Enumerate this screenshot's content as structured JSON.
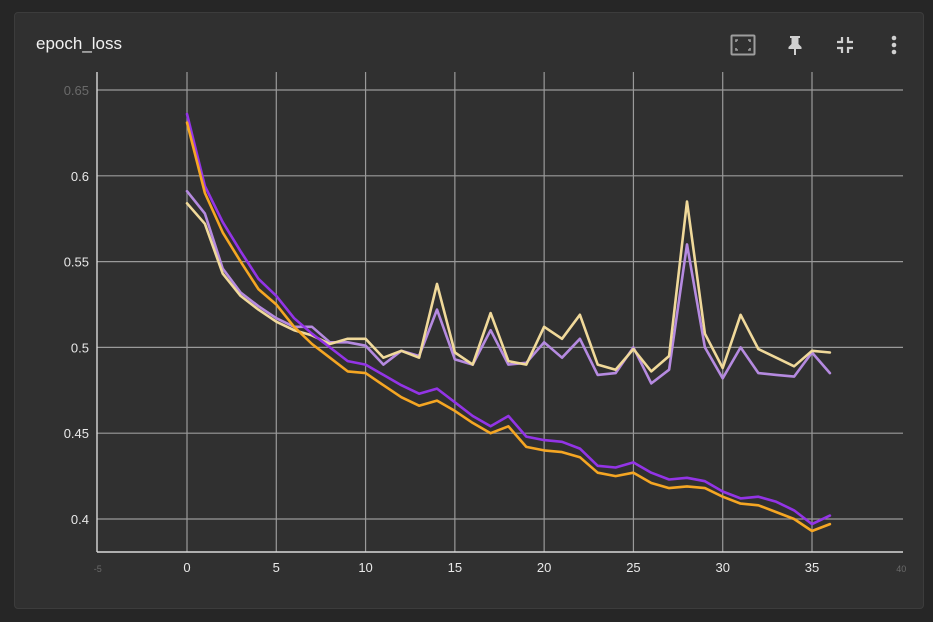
{
  "card": {
    "title": "epoch_loss"
  },
  "toolbar": {
    "icons": [
      "fit-domain-icon",
      "pin-icon",
      "collapse-icon",
      "more-vert-icon"
    ]
  },
  "colors": {
    "background": "#303030",
    "grid": "#9a9a9a",
    "purple": "#9334e6",
    "purple_light": "#b58ae0",
    "orange": "#f5a623",
    "cream": "#f0d99a"
  },
  "chart_data": {
    "type": "line",
    "title": "epoch_loss",
    "xlabel": "",
    "ylabel": "",
    "xlim": [
      -5,
      40
    ],
    "ylim": [
      0.38,
      0.655
    ],
    "x_ticks": [
      0,
      5,
      10,
      15,
      20,
      25,
      30,
      35
    ],
    "x_ticks_faded": [
      -5,
      40
    ],
    "y_ticks": [
      0.4,
      0.45,
      0.5,
      0.55,
      0.6
    ],
    "y_ticks_faded": [
      0.65
    ],
    "x_tick_labels": [
      "0",
      "5",
      "10",
      "15",
      "20",
      "25",
      "30",
      "35"
    ],
    "x_tick_labels_faded": [
      "-5",
      "40"
    ],
    "y_tick_labels": [
      "0.4",
      "0.45",
      "0.5",
      "0.55",
      "0.6"
    ],
    "y_tick_labels_faded": [
      "0.65"
    ],
    "grid": true,
    "series": [
      {
        "color": "#9334e6",
        "width": 2.6,
        "x": [
          0,
          1,
          2,
          3,
          4,
          5,
          6,
          7,
          8,
          9,
          10,
          11,
          12,
          13,
          14,
          15,
          16,
          17,
          18,
          19,
          20,
          21,
          22,
          23,
          24,
          25,
          26,
          27,
          28,
          29,
          30,
          31,
          32,
          33,
          34,
          35,
          36
        ],
        "values": [
          0.636,
          0.594,
          0.573,
          0.556,
          0.54,
          0.53,
          0.517,
          0.508,
          0.5,
          0.492,
          0.49,
          0.484,
          0.478,
          0.473,
          0.476,
          0.468,
          0.46,
          0.454,
          0.46,
          0.448,
          0.446,
          0.445,
          0.441,
          0.431,
          0.43,
          0.433,
          0.427,
          0.423,
          0.424,
          0.422,
          0.416,
          0.412,
          0.413,
          0.41,
          0.405,
          0.397,
          0.402
        ]
      },
      {
        "color": "#f5a623",
        "width": 2.6,
        "x": [
          0,
          1,
          2,
          3,
          4,
          5,
          6,
          7,
          8,
          9,
          10,
          11,
          12,
          13,
          14,
          15,
          16,
          17,
          18,
          19,
          20,
          21,
          22,
          23,
          24,
          25,
          26,
          27,
          28,
          29,
          30,
          31,
          32,
          33,
          34,
          35,
          36
        ],
        "values": [
          0.631,
          0.59,
          0.567,
          0.55,
          0.534,
          0.525,
          0.512,
          0.502,
          0.494,
          0.486,
          0.485,
          0.478,
          0.471,
          0.466,
          0.469,
          0.463,
          0.456,
          0.45,
          0.454,
          0.442,
          0.44,
          0.439,
          0.436,
          0.427,
          0.425,
          0.427,
          0.421,
          0.418,
          0.419,
          0.418,
          0.413,
          0.409,
          0.408,
          0.404,
          0.4,
          0.393,
          0.397
        ]
      },
      {
        "color": "#b58ae0",
        "width": 2.6,
        "x": [
          0,
          1,
          2,
          3,
          4,
          5,
          6,
          7,
          8,
          9,
          10,
          11,
          12,
          13,
          14,
          15,
          16,
          17,
          18,
          19,
          20,
          21,
          22,
          23,
          24,
          25,
          26,
          27,
          28,
          29,
          30,
          31,
          32,
          33,
          34,
          35,
          36
        ],
        "values": [
          0.591,
          0.578,
          0.546,
          0.532,
          0.524,
          0.517,
          0.512,
          0.512,
          0.503,
          0.503,
          0.501,
          0.49,
          0.498,
          0.495,
          0.522,
          0.493,
          0.49,
          0.51,
          0.49,
          0.491,
          0.503,
          0.494,
          0.505,
          0.484,
          0.485,
          0.5,
          0.479,
          0.487,
          0.56,
          0.5,
          0.482,
          0.5,
          0.485,
          0.484,
          0.483,
          0.497,
          0.485
        ]
      },
      {
        "color": "#f0d99a",
        "width": 2.6,
        "x": [
          0,
          1,
          2,
          3,
          4,
          5,
          6,
          7,
          8,
          9,
          10,
          11,
          12,
          13,
          14,
          15,
          16,
          17,
          18,
          19,
          20,
          21,
          22,
          23,
          24,
          25,
          26,
          27,
          28,
          29,
          30,
          31,
          32,
          33,
          34,
          35,
          36
        ],
        "values": [
          0.584,
          0.572,
          0.543,
          0.53,
          0.522,
          0.515,
          0.51,
          0.507,
          0.502,
          0.505,
          0.505,
          0.494,
          0.498,
          0.494,
          0.537,
          0.497,
          0.49,
          0.52,
          0.492,
          0.49,
          0.512,
          0.505,
          0.519,
          0.49,
          0.487,
          0.499,
          0.486,
          0.495,
          0.585,
          0.508,
          0.488,
          0.519,
          0.499,
          0.494,
          0.489,
          0.498,
          0.497
        ]
      }
    ]
  }
}
